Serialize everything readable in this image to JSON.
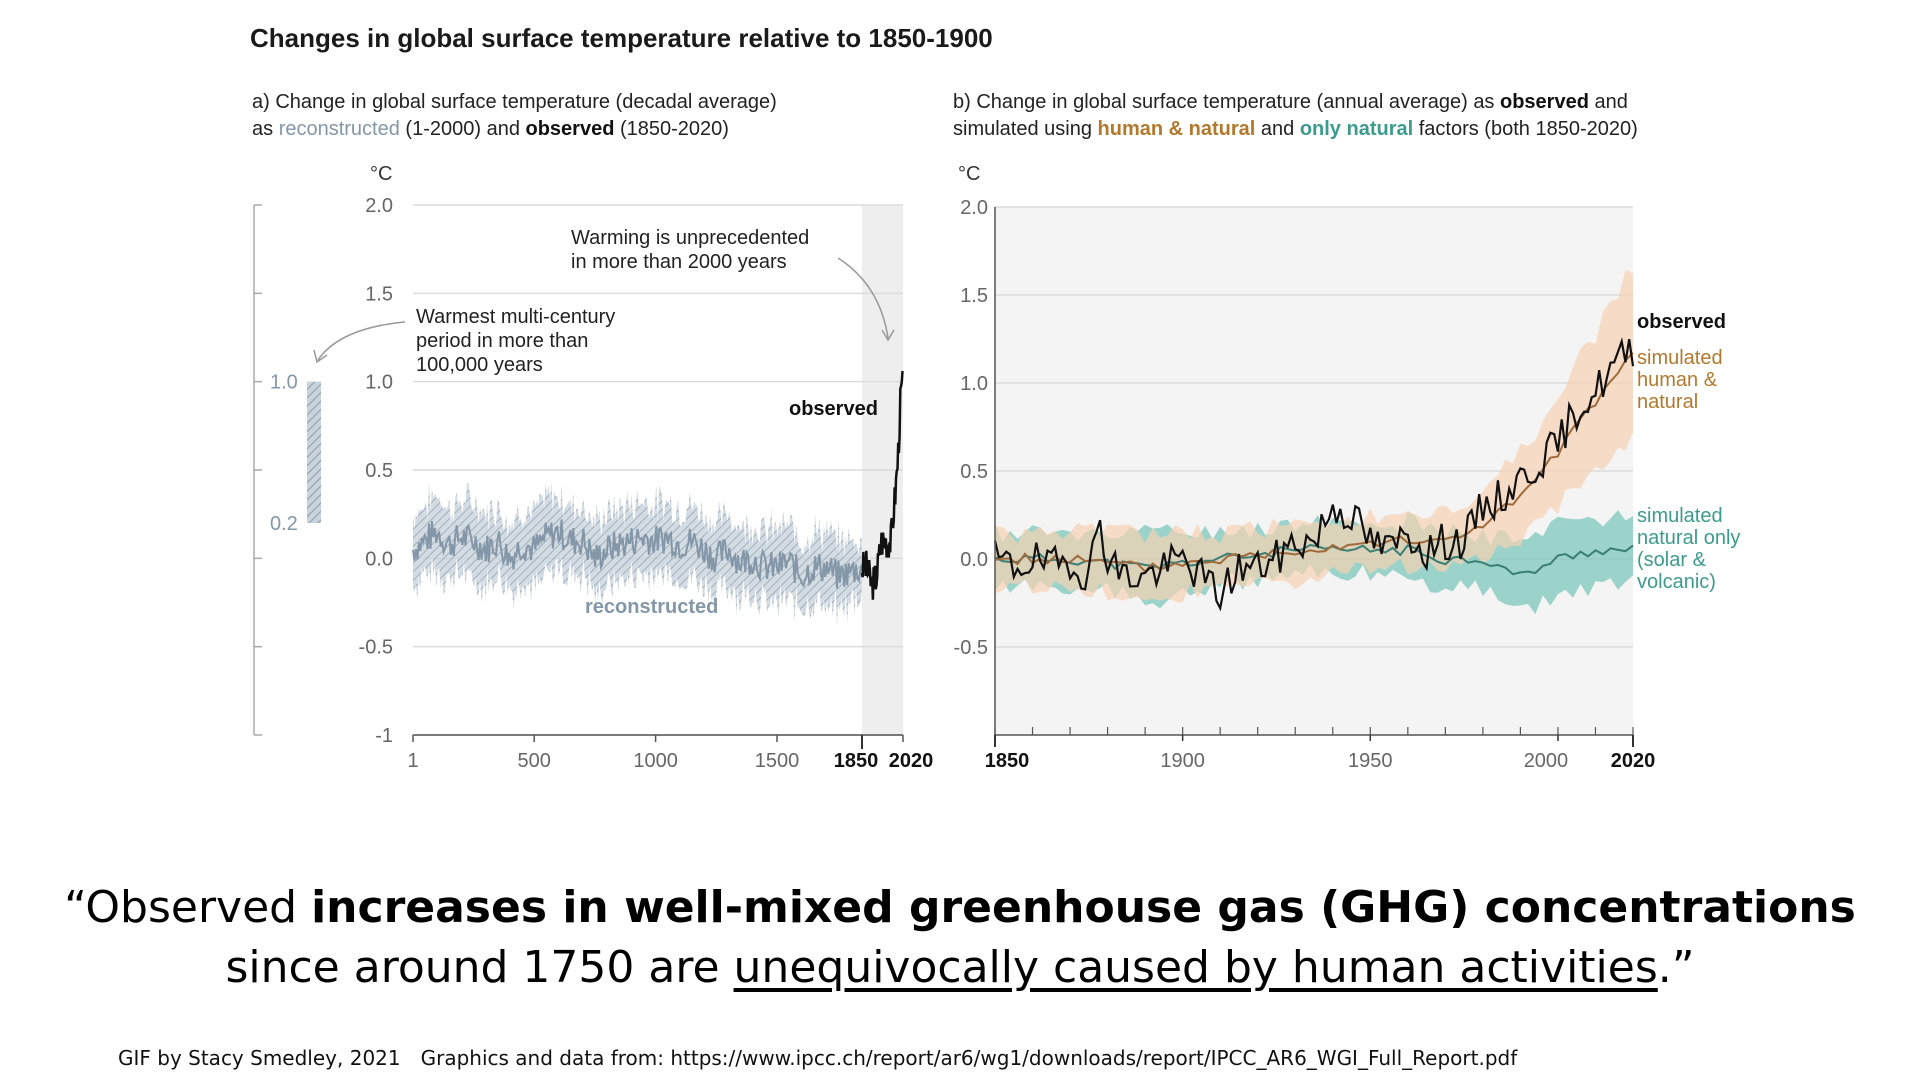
{
  "figure": {
    "title": "Changes in global surface temperature relative to 1850-1900"
  },
  "colors": {
    "reconstructed": "#8497a8",
    "observed": "#111111",
    "human_natural_line": "#a06a3a",
    "human_natural_band": "#f6d1b4",
    "natural_line": "#3b7e73",
    "natural_band": "#7ec8bc",
    "label_gold": "#b3782c",
    "label_teal": "#3b9c8d",
    "grid": "#dcdcdc",
    "shade": "#eeeeee"
  },
  "chart_data": [
    {
      "id": "a",
      "type": "line",
      "subtitle_parts": [
        {
          "text": "a) Change in global surface temperature (decadal average)",
          "style": "plain"
        },
        {
          "text": "as ",
          "style": "plain",
          "newline": true
        },
        {
          "text": "reconstructed",
          "style": "recon"
        },
        {
          "text": " (1-2000) and ",
          "style": "plain"
        },
        {
          "text": "observed",
          "style": "bold"
        },
        {
          "text": " (1850-2020)",
          "style": "plain"
        }
      ],
      "ylabel": "°C",
      "ylim": [
        -1,
        2
      ],
      "yticks": [
        2.0,
        1.5,
        1.0,
        0.5,
        0.0,
        -0.5,
        -1
      ],
      "ytick_labels": [
        "2.0",
        "1.5",
        "1.0",
        "0.5",
        "0.0",
        "-0.5",
        "-1"
      ],
      "xticks": [
        1,
        500,
        1000,
        1500,
        1850,
        2020
      ],
      "xtick_labels": [
        "1",
        "500",
        "1000",
        "1500",
        "1850",
        "2020"
      ],
      "xtick_bold": [
        "1850",
        "2020"
      ],
      "shaded_period": [
        1850,
        2020
      ],
      "inset_scale": {
        "ylim": [
          -1,
          2
        ],
        "labels": [
          "1.0",
          "0.2"
        ],
        "bar_range": [
          0.2,
          1.0
        ]
      },
      "series": [
        {
          "name": "reconstructed",
          "x": [
            1,
            50,
            100,
            150,
            200,
            250,
            300,
            350,
            400,
            450,
            500,
            550,
            600,
            650,
            700,
            750,
            800,
            850,
            900,
            950,
            1000,
            1050,
            1100,
            1150,
            1200,
            1250,
            1300,
            1350,
            1400,
            1450,
            1500,
            1550,
            1600,
            1650,
            1700,
            1750,
            1800,
            1850
          ],
          "values": [
            0.05,
            0.1,
            0.15,
            0.08,
            0.12,
            0.1,
            0.05,
            0.1,
            0.0,
            0.08,
            0.05,
            0.12,
            0.15,
            0.1,
            0.1,
            0.0,
            0.05,
            0.08,
            0.1,
            0.12,
            0.1,
            0.12,
            0.08,
            0.1,
            0.05,
            0.0,
            0.05,
            -0.02,
            0.0,
            -0.05,
            -0.05,
            -0.02,
            -0.1,
            -0.05,
            -0.05,
            -0.1,
            -0.08,
            -0.05
          ],
          "band_halfwidth": [
            0.2,
            0.2,
            0.22,
            0.2,
            0.2,
            0.22,
            0.2,
            0.2,
            0.2,
            0.2,
            0.2,
            0.22,
            0.2,
            0.2,
            0.2,
            0.2,
            0.2,
            0.2,
            0.2,
            0.22,
            0.2,
            0.2,
            0.2,
            0.2,
            0.2,
            0.2,
            0.2,
            0.2,
            0.2,
            0.2,
            0.22,
            0.2,
            0.2,
            0.2,
            0.2,
            0.2,
            0.18,
            0.15
          ]
        },
        {
          "name": "observed",
          "x": [
            1850,
            1870,
            1890,
            1910,
            1930,
            1950,
            1970,
            1990,
            2000,
            2010,
            2020
          ],
          "values": [
            -0.05,
            -0.05,
            -0.15,
            -0.1,
            0.1,
            0.1,
            0.1,
            0.4,
            0.6,
            0.9,
            1.1
          ]
        }
      ],
      "annotations": [
        {
          "text": [
            "Warming is unprecedented",
            "in more than 2000 years"
          ]
        },
        {
          "text": [
            "Warmest multi-century",
            "period in more than",
            "100,000 years"
          ]
        },
        {
          "text": [
            "observed"
          ]
        },
        {
          "text": [
            "reconstructed"
          ]
        }
      ]
    },
    {
      "id": "b",
      "type": "line",
      "subtitle_parts": [
        {
          "text": "b) Change in global surface temperature (annual average) as ",
          "style": "plain"
        },
        {
          "text": "observed",
          "style": "bold"
        },
        {
          "text": " and",
          "style": "plain"
        },
        {
          "text": "simulated using ",
          "style": "plain",
          "newline": true
        },
        {
          "text": "human & natural",
          "style": "gold"
        },
        {
          "text": " and ",
          "style": "plain"
        },
        {
          "text": "only natural",
          "style": "teal"
        },
        {
          "text": " factors (both 1850-2020)",
          "style": "plain"
        }
      ],
      "ylabel": "°C",
      "ylim": [
        -1,
        2
      ],
      "yticks": [
        2.0,
        1.5,
        1.0,
        0.5,
        0.0,
        -0.5
      ],
      "ytick_labels": [
        "2.0",
        "1.5",
        "1.0",
        "0.5",
        "0.0",
        "-0.5"
      ],
      "xlim": [
        1850,
        2020
      ],
      "xticks": [
        1850,
        1900,
        1950,
        2000,
        2020
      ],
      "xtick_labels": [
        "1850",
        "1900",
        "1950",
        "2000",
        "2020"
      ],
      "xtick_bold": [
        "1850",
        "2020"
      ],
      "series": [
        {
          "name": "observed",
          "x": [
            1850,
            1855,
            1860,
            1865,
            1870,
            1875,
            1878,
            1880,
            1885,
            1890,
            1895,
            1900,
            1905,
            1910,
            1915,
            1920,
            1925,
            1930,
            1935,
            1940,
            1945,
            1950,
            1955,
            1960,
            1965,
            1970,
            1975,
            1980,
            1985,
            1990,
            1995,
            2000,
            2005,
            2010,
            2015,
            2020
          ],
          "values": [
            0.0,
            -0.05,
            0.0,
            -0.05,
            0.0,
            -0.1,
            0.25,
            0.0,
            -0.1,
            -0.1,
            -0.05,
            0.0,
            -0.1,
            -0.2,
            -0.05,
            -0.05,
            0.0,
            0.1,
            0.1,
            0.3,
            0.25,
            0.1,
            0.05,
            0.15,
            0.05,
            0.1,
            0.1,
            0.3,
            0.35,
            0.45,
            0.55,
            0.65,
            0.85,
            0.95,
            1.1,
            1.2
          ]
        },
        {
          "name": "simulated human & natural",
          "x": [
            1850,
            1870,
            1890,
            1910,
            1930,
            1950,
            1960,
            1970,
            1980,
            1990,
            2000,
            2010,
            2020
          ],
          "values": [
            0.0,
            0.0,
            -0.05,
            0.0,
            0.05,
            0.1,
            0.1,
            0.1,
            0.2,
            0.35,
            0.6,
            0.9,
            1.15
          ],
          "band_halfwidth": [
            0.15,
            0.15,
            0.2,
            0.15,
            0.15,
            0.15,
            0.15,
            0.15,
            0.2,
            0.25,
            0.3,
            0.4,
            0.5
          ]
        },
        {
          "name": "simulated natural only (solar & volcanic)",
          "x": [
            1850,
            1870,
            1890,
            1910,
            1930,
            1950,
            1960,
            1970,
            1980,
            1990,
            2000,
            2010,
            2020
          ],
          "values": [
            0.0,
            0.0,
            -0.05,
            0.0,
            0.05,
            0.05,
            0.05,
            0.0,
            0.0,
            -0.1,
            0.0,
            0.05,
            0.05
          ],
          "band_halfwidth": [
            0.15,
            0.15,
            0.2,
            0.15,
            0.15,
            0.15,
            0.15,
            0.15,
            0.15,
            0.2,
            0.2,
            0.2,
            0.2
          ]
        }
      ],
      "legend": [
        {
          "lines": [
            "observed"
          ],
          "style": "obs"
        },
        {
          "lines": [
            "simulated",
            "human &",
            "natural"
          ],
          "style": "gold"
        },
        {
          "lines": [
            "simulated",
            "natural only",
            "(solar &",
            "volcanic)"
          ],
          "style": "teal"
        }
      ]
    }
  ],
  "quote": {
    "line1_plain": "“Observed ",
    "line1_bold": "increases in well-mixed greenhouse gas (GHG) concentrations",
    "line2_plain": "since around 1750 are ",
    "line2_underline": "unequivocally caused by human activities",
    "line2_end": ".”"
  },
  "credits": {
    "author": "GIF by Stacy Smedley, 2021",
    "source": "Graphics and data from: https://www.ipcc.ch/report/ar6/wg1/downloads/report/IPCC_AR6_WGI_Full_Report.pdf"
  }
}
